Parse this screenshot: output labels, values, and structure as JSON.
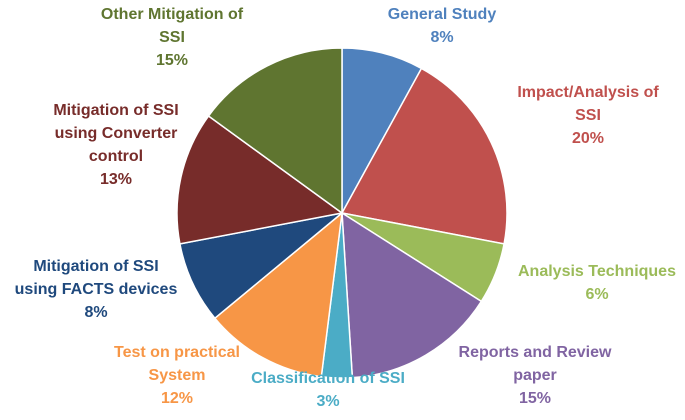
{
  "chart_data": {
    "type": "pie",
    "title": "",
    "start_angle_deg": 0,
    "direction": "clockwise",
    "slice_border_color": "#ffffff",
    "slices": [
      {
        "label": "General Study",
        "label_lines": [
          "General Study"
        ],
        "value": 8,
        "value_label": "8%",
        "color": "#4F81BD",
        "label_color": "#4F81BD"
      },
      {
        "label": "Impact/Analysis of SSI",
        "label_lines": [
          "Impact/Analysis of",
          "SSI"
        ],
        "value": 20,
        "value_label": "20%",
        "color": "#C0504D",
        "label_color": "#C0504D"
      },
      {
        "label": "Analysis Techniques",
        "label_lines": [
          "Analysis Techniques"
        ],
        "value": 6,
        "value_label": "6%",
        "color": "#9BBB59",
        "label_color": "#9BBB59"
      },
      {
        "label": "Reports and Review paper",
        "label_lines": [
          "Reports and Review",
          "paper"
        ],
        "value": 15,
        "value_label": "15%",
        "color": "#8064A2",
        "label_color": "#8064A2"
      },
      {
        "label": "Classification of SSI",
        "label_lines": [
          "Classification of SSI"
        ],
        "value": 3,
        "value_label": "3%",
        "color": "#4BACC6",
        "label_color": "#4BACC6"
      },
      {
        "label": "Test on practical System",
        "label_lines": [
          "Test on practical",
          "System"
        ],
        "value": 12,
        "value_label": "12%",
        "color": "#F79646",
        "label_color": "#F79646"
      },
      {
        "label": "Mitigation of SSI using FACTS devices",
        "label_lines": [
          "Mitigation of SSI",
          "using FACTS devices"
        ],
        "value": 8,
        "value_label": "8%",
        "color": "#1F497D",
        "label_color": "#1F497D"
      },
      {
        "label": "Mitigation of SSI using Converter control",
        "label_lines": [
          "Mitigation of SSI",
          "using Converter",
          "control"
        ],
        "value": 13,
        "value_label": "13%",
        "color": "#772C2A",
        "label_color": "#772C2A"
      },
      {
        "label": "Other Mitigation of SSI",
        "label_lines": [
          "Other Mitigation of",
          "SSI"
        ],
        "value": 15,
        "value_label": "15%",
        "color": "#5F7530",
        "label_color": "#5F7530"
      }
    ]
  }
}
